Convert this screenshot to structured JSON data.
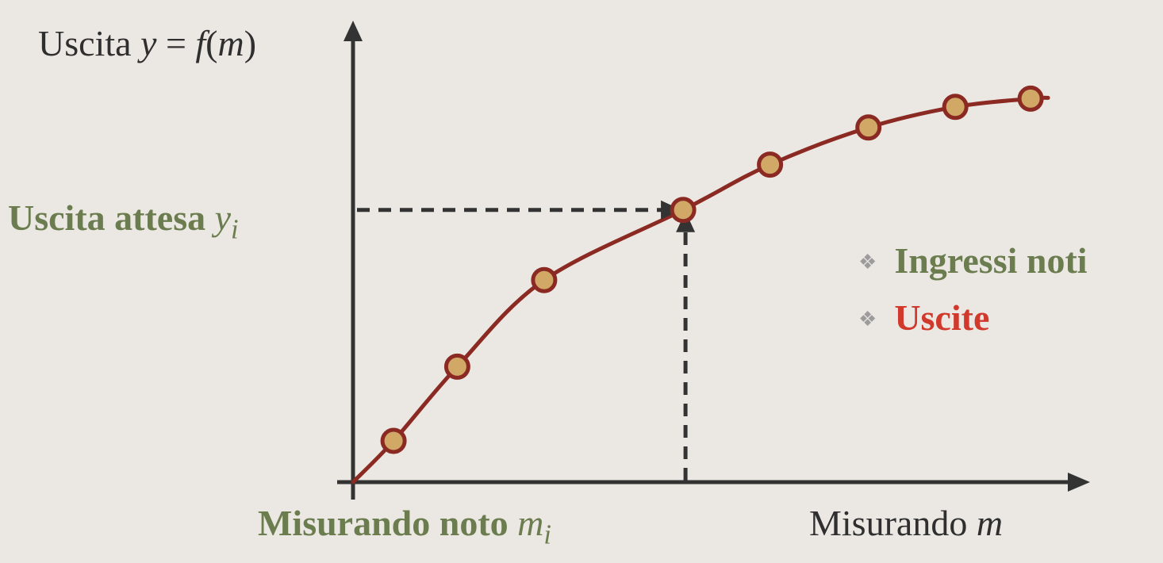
{
  "y_axis_label": {
    "text": "Uscita ",
    "var": "y",
    "eq": " = ",
    "fn": "f",
    "open": "(",
    "arg": "m",
    "close": ")"
  },
  "x_axis_label": {
    "text": "Misurando ",
    "var": "m"
  },
  "expected_output": {
    "text": "Uscita attesa ",
    "var": "y",
    "sub": "i"
  },
  "known_measurand": {
    "text": "Misurando noto ",
    "var": "m",
    "sub": "i"
  },
  "legend": [
    {
      "text": "Ingressi noti",
      "color": "#6b7c4f"
    },
    {
      "text": "Uscite",
      "color": "#d0392b"
    }
  ],
  "colors": {
    "curve": "#8b2a23",
    "point_fill": "#d1a866",
    "point_stroke": "#8b2a23",
    "axes": "#333333",
    "guide": "#333333"
  },
  "calibration_points": [
    {
      "m": 0.07,
      "y": 0.1
    },
    {
      "m": 0.18,
      "y": 0.28
    },
    {
      "m": 0.33,
      "y": 0.49
    },
    {
      "m": 0.57,
      "y": 0.66
    },
    {
      "m": 0.72,
      "y": 0.77
    },
    {
      "m": 0.89,
      "y": 0.86
    },
    {
      "m": 1.04,
      "y": 0.91
    },
    {
      "m": 1.17,
      "y": 0.93
    }
  ],
  "highlight_point": {
    "m": 0.57,
    "y": 0.66
  }
}
